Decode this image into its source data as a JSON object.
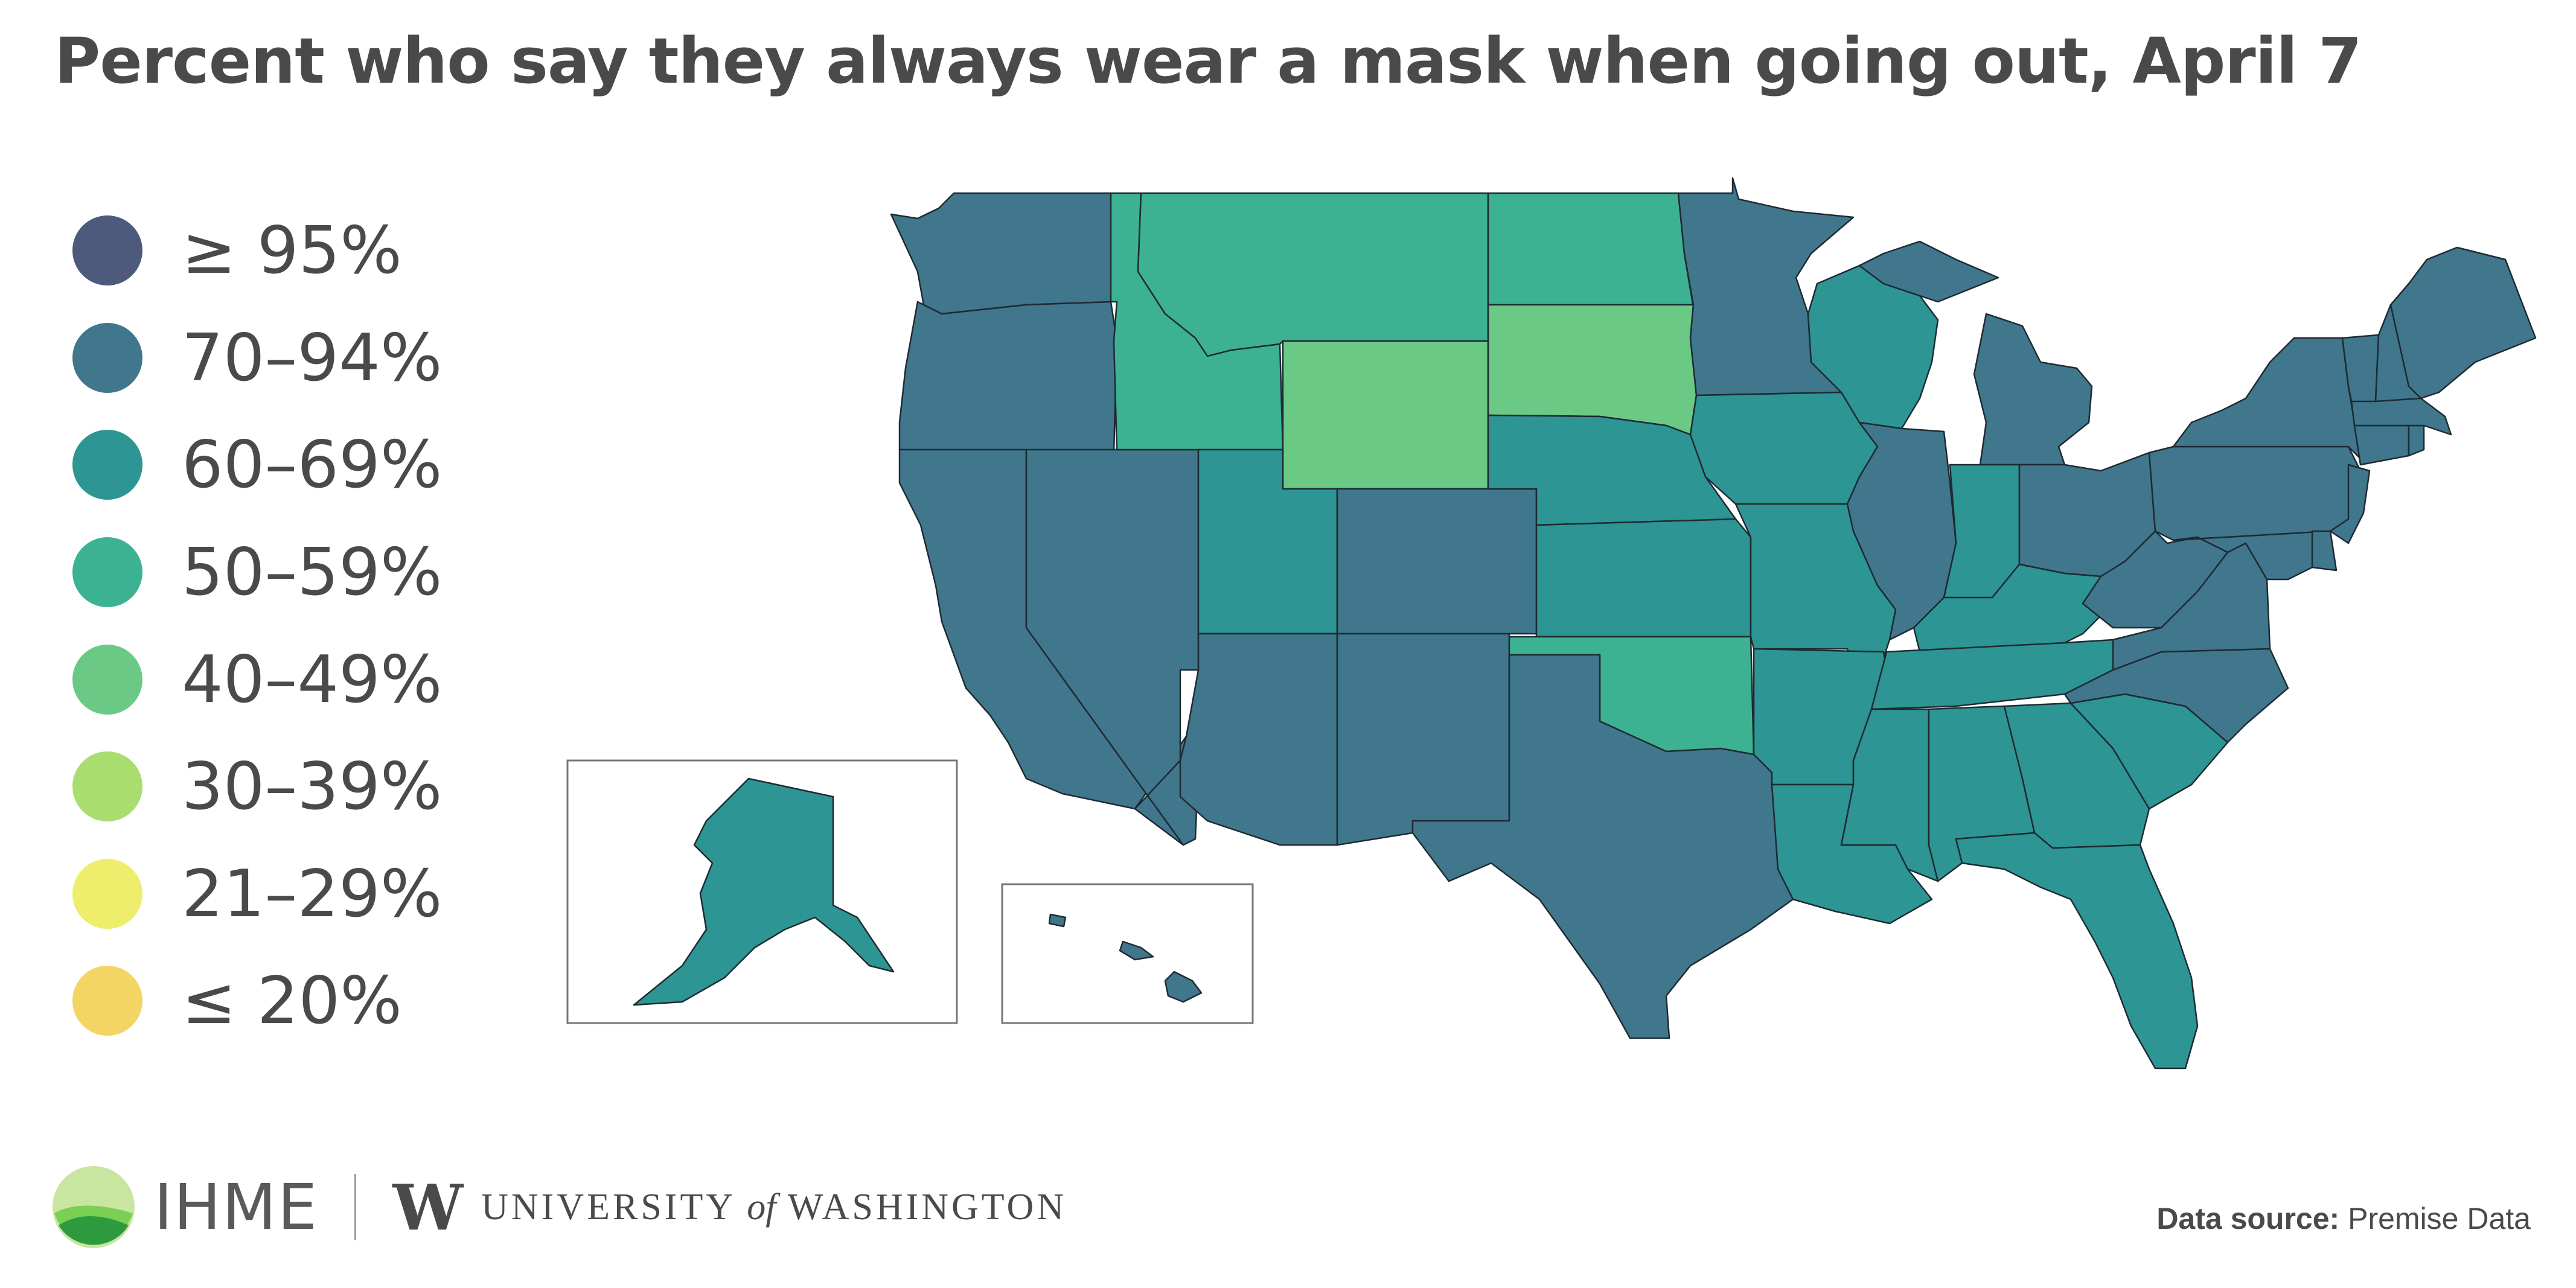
{
  "title": "Percent who say they always wear a mask when going out, April 7",
  "legend": [
    {
      "label": "≥ 95%",
      "color": "#4d5a7c"
    },
    {
      "label": "70–94%",
      "color": "#40778c"
    },
    {
      "label": "60–69%",
      "color": "#2d9593"
    },
    {
      "label": "50–59%",
      "color": "#3db293"
    },
    {
      "label": "40–49%",
      "color": "#6bc986"
    },
    {
      "label": "30–39%",
      "color": "#a9dd6f"
    },
    {
      "label": "21–29%",
      "color": "#eeee6c"
    },
    {
      "label": "≤ 20%",
      "color": "#f4d463"
    }
  ],
  "footer": {
    "org": "IHME",
    "university_prefix": "UNIVERSITY",
    "university_of": "of",
    "university_suffix": "WASHINGTON",
    "source_label": "Data source:",
    "source_value": "Premise Data"
  },
  "map_data": {
    "Washington": "70–94%",
    "Oregon": "70–94%",
    "California": "70–94%",
    "Nevada": "70–94%",
    "Idaho": "50–59%",
    "Montana": "50–59%",
    "Wyoming": "40–49%",
    "Utah": "60–69%",
    "Colorado": "70–94%",
    "Arizona": "70–94%",
    "New Mexico": "70–94%",
    "North Dakota": "50–59%",
    "South Dakota": "40–49%",
    "Nebraska": "60–69%",
    "Kansas": "60–69%",
    "Oklahoma": "50–59%",
    "Texas": "70–94%",
    "Minnesota": "70–94%",
    "Iowa": "60–69%",
    "Missouri": "60–69%",
    "Arkansas": "60–69%",
    "Louisiana": "60–69%",
    "Wisconsin": "60–69%",
    "Illinois": "70–94%",
    "Michigan": "70–94%",
    "Indiana": "60–69%",
    "Ohio": "70–94%",
    "Kentucky": "60–69%",
    "Tennessee": "60–69%",
    "Mississippi": "60–69%",
    "Alabama": "60–69%",
    "Georgia": "60–69%",
    "Florida": "60–69%",
    "South Carolina": "60–69%",
    "North Carolina": "70–94%",
    "Virginia": "70–94%",
    "West Virginia": "70–94%",
    "Pennsylvania": "70–94%",
    "New York": "70–94%",
    "Maryland": "70–94%",
    "Delaware": "70–94%",
    "New Jersey": "70–94%",
    "Connecticut": "70–94%",
    "Rhode Island": "70–94%",
    "Massachusetts": "70–94%",
    "Vermont": "70–94%",
    "New Hampshire": "70–94%",
    "Maine": "70–94%",
    "Alaska": "60–69%",
    "Hawaii": "70–94%"
  }
}
